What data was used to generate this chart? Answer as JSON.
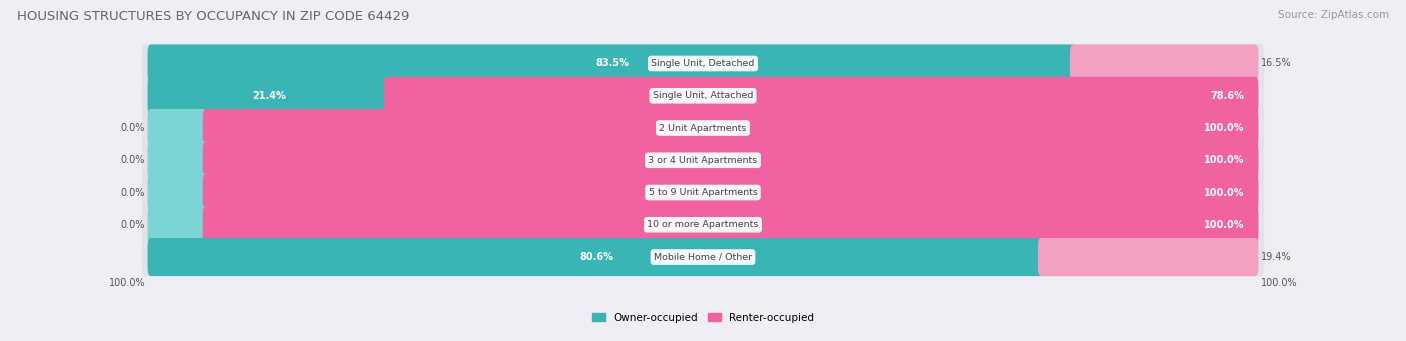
{
  "title": "HOUSING STRUCTURES BY OCCUPANCY IN ZIP CODE 64429",
  "source": "Source: ZipAtlas.com",
  "categories": [
    "Single Unit, Detached",
    "Single Unit, Attached",
    "2 Unit Apartments",
    "3 or 4 Unit Apartments",
    "5 to 9 Unit Apartments",
    "10 or more Apartments",
    "Mobile Home / Other"
  ],
  "owner_pct": [
    83.5,
    21.4,
    0.0,
    0.0,
    0.0,
    0.0,
    80.6
  ],
  "renter_pct": [
    16.5,
    78.6,
    100.0,
    100.0,
    100.0,
    100.0,
    19.4
  ],
  "owner_color": "#3ab5b5",
  "owner_color_stub": "#7dd4d4",
  "renter_color_strong": "#f062a0",
  "renter_color_light": "#f4a0c0",
  "bg_color": "#eeeef4",
  "bar_bg_color": "#e2e2ec",
  "bar_bg_shadow": "#d0d0de",
  "label_dark": "#555555",
  "label_white": "#ffffff",
  "source_color": "#999999",
  "title_color": "#666666",
  "figsize": [
    14.06,
    3.41
  ],
  "dpi": 100
}
